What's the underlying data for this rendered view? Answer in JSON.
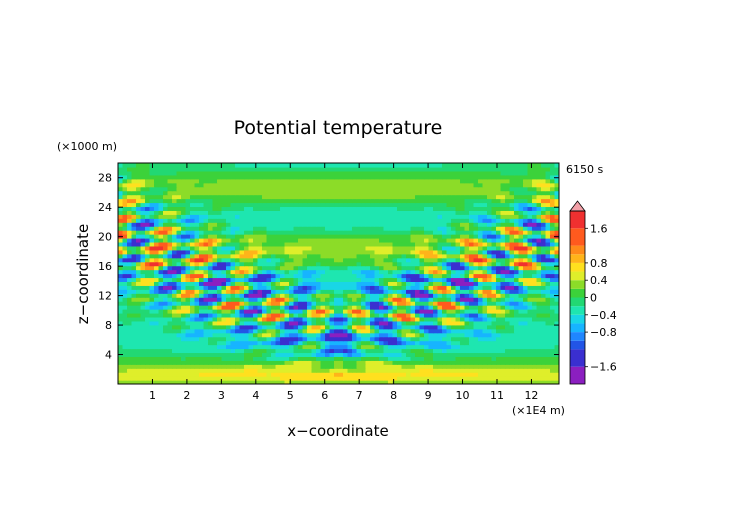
{
  "chart_data": {
    "type": "heatmap",
    "title": "Potential temperature",
    "xlabel": "x−coordinate",
    "ylabel": "z−coordinate",
    "x_unit": "(×1E4 m)",
    "y_unit": "(×1000 m)",
    "time_label": "6150 s",
    "xlim": [
      0,
      12.8
    ],
    "ylim": [
      0,
      30
    ],
    "x_ticks": [
      1,
      2,
      3,
      4,
      5,
      6,
      7,
      8,
      9,
      10,
      11,
      12
    ],
    "y_ticks": [
      4,
      8,
      12,
      16,
      20,
      24,
      28
    ],
    "colorbar": {
      "labels": [
        "1.6",
        "0.8",
        "0.4",
        "0",
        "−0.4",
        "−0.8",
        "−1.6"
      ],
      "label_values": [
        1.6,
        0.8,
        0.4,
        0,
        -0.4,
        -0.8,
        -1.6
      ],
      "levels": [
        -2.0,
        -1.6,
        -1.2,
        -1.0,
        -0.8,
        -0.6,
        -0.4,
        -0.2,
        0,
        0.2,
        0.4,
        0.6,
        0.8,
        1.0,
        1.2,
        1.6,
        2.0
      ],
      "colors": [
        "#8b1fc0",
        "#3a2fd0",
        "#2255e6",
        "#1f86ff",
        "#17b4ff",
        "#19d6e6",
        "#1ee6b0",
        "#22d873",
        "#3cd23a",
        "#8cdc28",
        "#dfee2a",
        "#ffe01f",
        "#ffb41a",
        "#ff8a1a",
        "#ff5a1e",
        "#f03030"
      ],
      "extend_color": "#f2a0a8"
    },
    "field_description": "gravity wave pattern: crossed wave beams radiating upward from mountain near x=6.4"
  }
}
